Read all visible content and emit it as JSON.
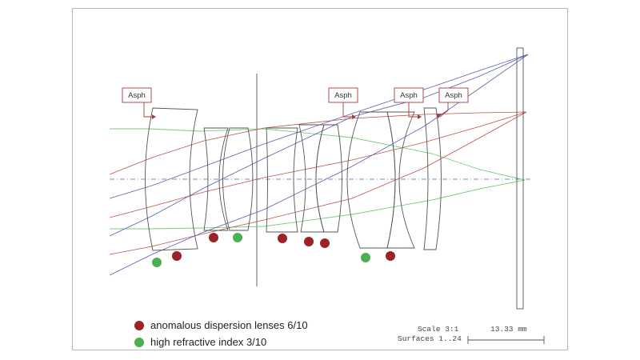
{
  "asph_label": "Asph",
  "legend": {
    "anomalous": {
      "label": "anomalous dispersion lenses 6/10",
      "color": "#9b2226"
    },
    "high_ri": {
      "label": "high refractive index  3/10",
      "color": "#4caf50"
    }
  },
  "scale": {
    "scale_text": "Scale 3:1",
    "surfaces_text": "Surfaces 1..24",
    "length_text": "13.33 mm"
  },
  "colors": {
    "lens_outline": "#555555",
    "ray_red": "#c0504d",
    "ray_blue": "#5a5fb0",
    "ray_green": "#7ec97e",
    "axis": "#4a6aa0",
    "asph_box": "#a04040"
  }
}
